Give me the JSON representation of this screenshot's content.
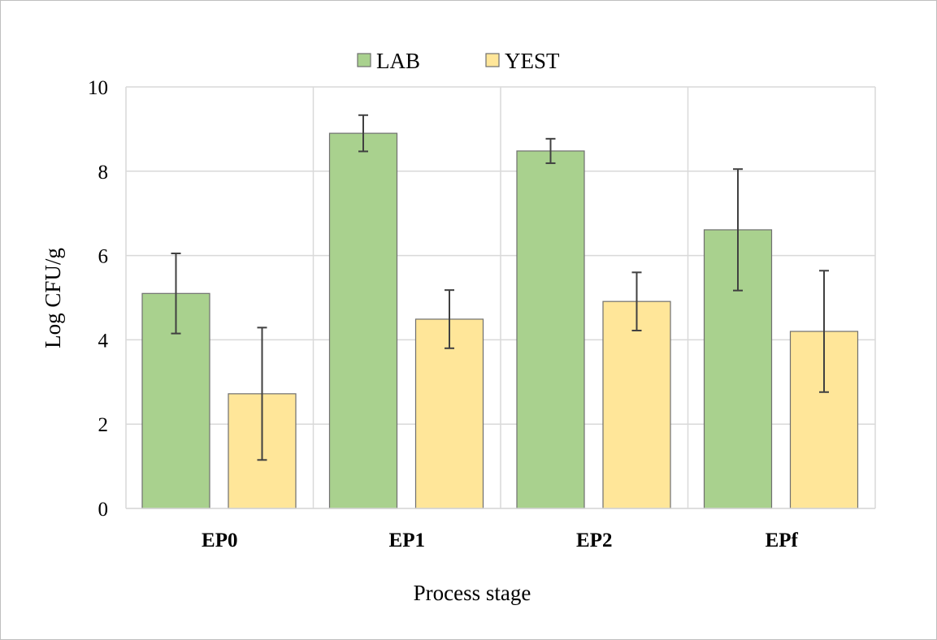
{
  "chart_data": {
    "type": "bar",
    "title": "",
    "xlabel": "Process stage",
    "ylabel": "Log CFU/g",
    "ylim": [
      0,
      10
    ],
    "yticks": [
      0,
      2,
      4,
      6,
      8,
      10
    ],
    "grid": true,
    "legend_position": "top-center",
    "categories": [
      "EP0",
      "EP1",
      "EP2",
      "EPf"
    ],
    "series": [
      {
        "name": "LAB",
        "color": "#a9d18e",
        "values": [
          5.1,
          8.9,
          8.48,
          6.61
        ],
        "errors": [
          0.95,
          0.43,
          0.29,
          1.44
        ]
      },
      {
        "name": "YEST",
        "color": "#ffe699",
        "values": [
          2.72,
          4.49,
          4.91,
          4.2
        ],
        "errors": [
          1.57,
          0.69,
          0.69,
          1.44
        ]
      }
    ]
  }
}
